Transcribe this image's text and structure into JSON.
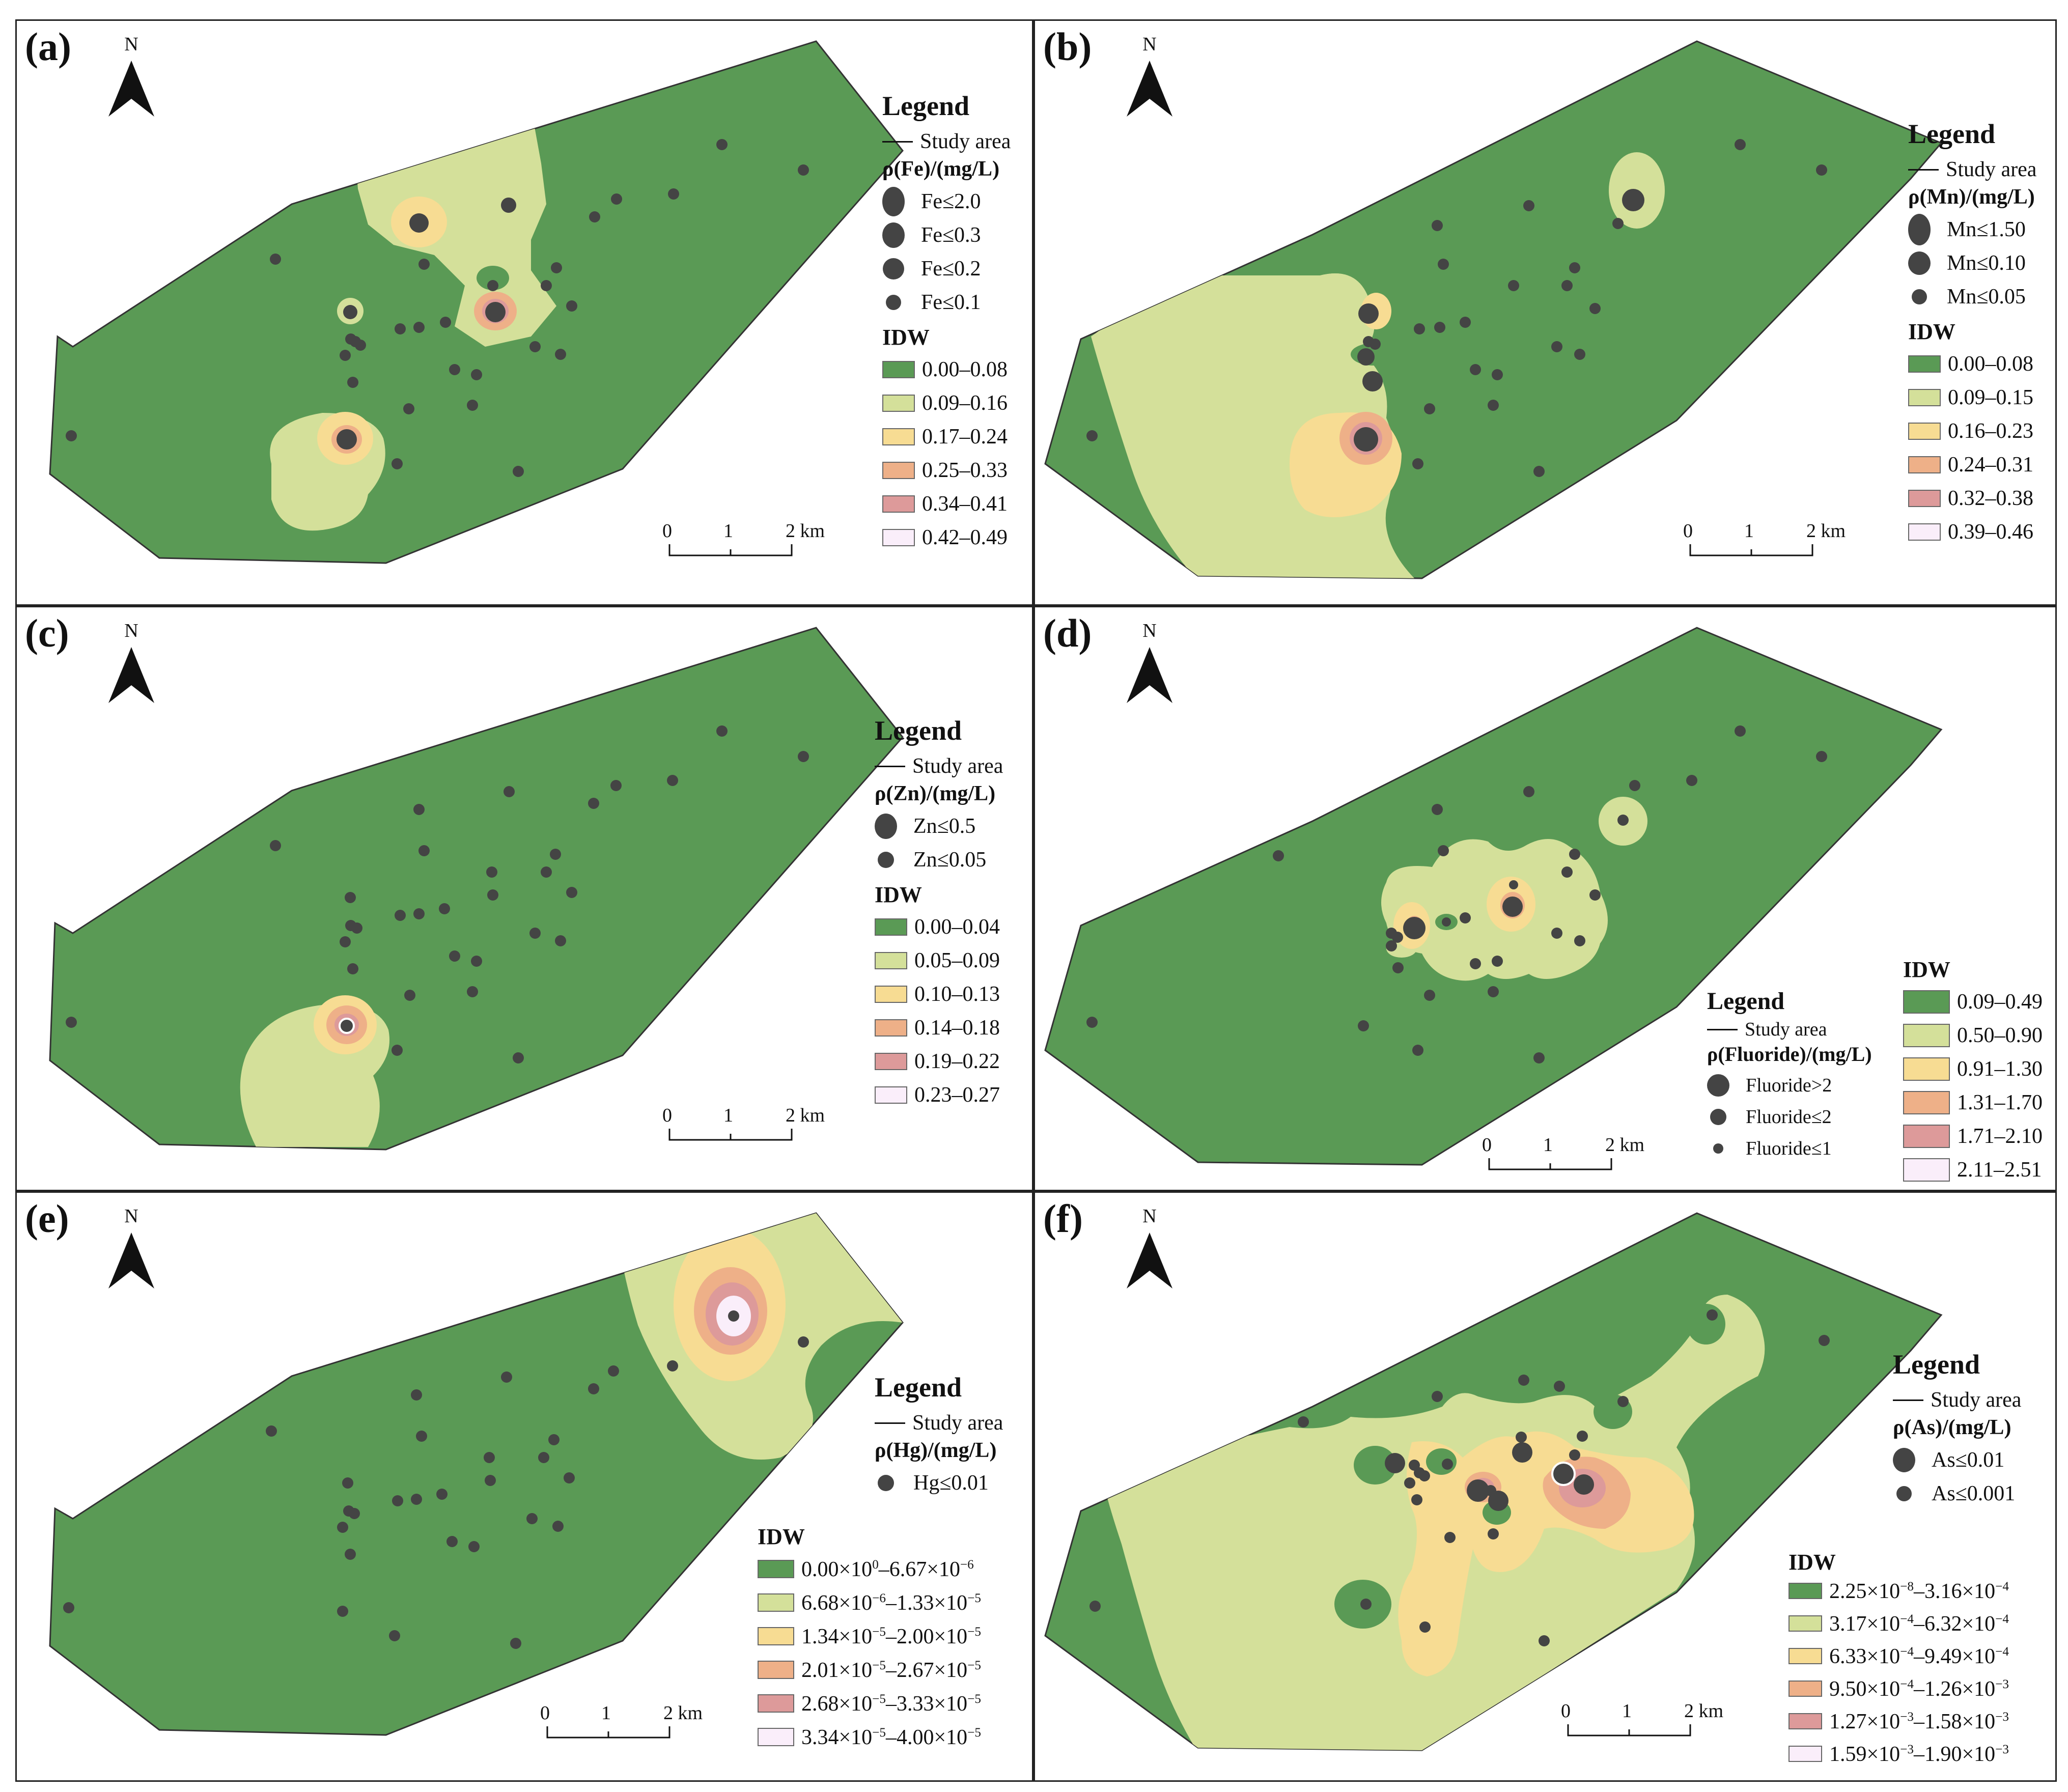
{
  "colors": {
    "c1": "#5a9a55",
    "c2": "#d4e09a",
    "c3": "#f7dc93",
    "c4": "#eeb088",
    "c5": "#dd9a9a",
    "c6": "#faeefa",
    "dot": "#444444"
  },
  "common": {
    "north_letter": "N",
    "legend_title": "Legend",
    "study_area": "Study area",
    "idw_title": "IDW",
    "scale_0": "0",
    "scale_1": "1",
    "scale_2": "2 km"
  },
  "panels": {
    "a": {
      "label": "(a)",
      "param": "ρ(Fe)/(mg/L)",
      "sample_classes": [
        "Fe≤2.0",
        "Fe≤0.3",
        "Fe≤0.2",
        "Fe≤0.1"
      ],
      "idw_classes": [
        "0.00–0.08",
        "0.09–0.16",
        "0.17–0.24",
        "0.25–0.33",
        "0.34–0.41",
        "0.42–0.49"
      ]
    },
    "b": {
      "label": "(b)",
      "param": "ρ(Mn)/(mg/L)",
      "sample_classes": [
        "Mn≤1.50",
        "Mn≤0.10",
        "Mn≤0.05"
      ],
      "idw_classes": [
        "0.00–0.08",
        "0.09–0.15",
        "0.16–0.23",
        "0.24–0.31",
        "0.32–0.38",
        "0.39–0.46"
      ]
    },
    "c": {
      "label": "(c)",
      "param": "ρ(Zn)/(mg/L)",
      "sample_classes": [
        "Zn≤0.5",
        "Zn≤0.05"
      ],
      "idw_classes": [
        "0.00–0.04",
        "0.05–0.09",
        "0.10–0.13",
        "0.14–0.18",
        "0.19–0.22",
        "0.23–0.27"
      ]
    },
    "d": {
      "label": "(d)",
      "param": "ρ(Fluoride)/(mg/L)",
      "sample_classes": [
        "Fluoride>2",
        "Fluoride≤2",
        "Fluoride≤1"
      ],
      "idw_classes": [
        "0.09–0.49",
        "0.50–0.90",
        "0.91–1.30",
        "1.31–1.70",
        "1.71–2.10",
        "2.11–2.51"
      ]
    },
    "e": {
      "label": "(e)",
      "param": "ρ(Hg)/(mg/L)",
      "sample_classes": [
        "Hg≤0.01"
      ],
      "idw_classes": [
        {
          "a": "0.00×10",
          "ae": "0",
          "b": "–6.67×10",
          "be": "−6"
        },
        {
          "a": "6.68×10",
          "ae": "−6",
          "b": "–1.33×10",
          "be": "−5"
        },
        {
          "a": "1.34×10",
          "ae": "−5",
          "b": "–2.00×10",
          "be": "−5"
        },
        {
          "a": "2.01×10",
          "ae": "−5",
          "b": "–2.67×10",
          "be": "−5"
        },
        {
          "a": "2.68×10",
          "ae": "−5",
          "b": "–3.33×10",
          "be": "−5"
        },
        {
          "a": "3.34×10",
          "ae": "−5",
          "b": "–4.00×10",
          "be": "−5"
        }
      ]
    },
    "f": {
      "label": "(f)",
      "param": "ρ(As)/(mg/L)",
      "sample_classes": [
        "As≤0.01",
        "As≤0.001"
      ],
      "idw_classes": [
        {
          "a": "2.25×10",
          "ae": "−8",
          "b": "–3.16×10",
          "be": "−4"
        },
        {
          "a": "3.17×10",
          "ae": "−4",
          "b": "–6.32×10",
          "be": "−4"
        },
        {
          "a": "6.33×10",
          "ae": "−4",
          "b": "–9.49×10",
          "be": "−4"
        },
        {
          "a": "9.50×10",
          "ae": "−4",
          "b": "–1.26×10",
          "be": "−3"
        },
        {
          "a": "1.27×10",
          "ae": "−3",
          "b": "–1.58×10",
          "be": "−3"
        },
        {
          "a": "1.59×10",
          "ae": "−3",
          "b": "–1.90×10",
          "be": "−3"
        }
      ]
    }
  }
}
